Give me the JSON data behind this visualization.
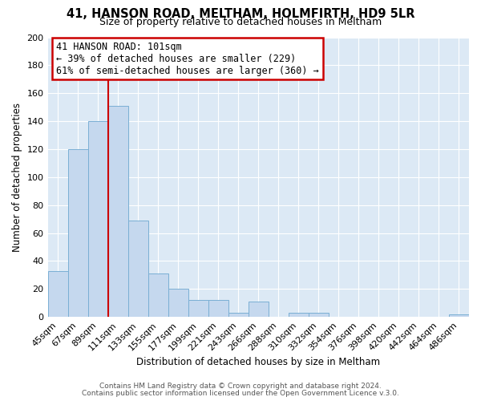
{
  "title": "41, HANSON ROAD, MELTHAM, HOLMFIRTH, HD9 5LR",
  "subtitle": "Size of property relative to detached houses in Meltham",
  "xlabel": "Distribution of detached houses by size in Meltham",
  "ylabel": "Number of detached properties",
  "bar_labels": [
    "45sqm",
    "67sqm",
    "89sqm",
    "111sqm",
    "133sqm",
    "155sqm",
    "177sqm",
    "199sqm",
    "221sqm",
    "243sqm",
    "266sqm",
    "288sqm",
    "310sqm",
    "332sqm",
    "354sqm",
    "376sqm",
    "398sqm",
    "420sqm",
    "442sqm",
    "464sqm",
    "486sqm"
  ],
  "bar_values": [
    33,
    120,
    140,
    151,
    69,
    31,
    20,
    12,
    12,
    3,
    11,
    0,
    3,
    3,
    0,
    0,
    0,
    0,
    0,
    0,
    2
  ],
  "bar_color": "#c5d8ee",
  "bar_edge_color": "#7aafd4",
  "vline_color": "#cc0000",
  "ylim": [
    0,
    200
  ],
  "yticks": [
    0,
    20,
    40,
    60,
    80,
    100,
    120,
    140,
    160,
    180,
    200
  ],
  "annotation_title": "41 HANSON ROAD: 101sqm",
  "annotation_line1": "← 39% of detached houses are smaller (229)",
  "annotation_line2": "61% of semi-detached houses are larger (360) →",
  "annotation_box_color": "#cc0000",
  "footer_line1": "Contains HM Land Registry data © Crown copyright and database right 2024.",
  "footer_line2": "Contains public sector information licensed under the Open Government Licence v.3.0.",
  "fig_bg_color": "#ffffff",
  "plot_bg_color": "#dce9f5"
}
